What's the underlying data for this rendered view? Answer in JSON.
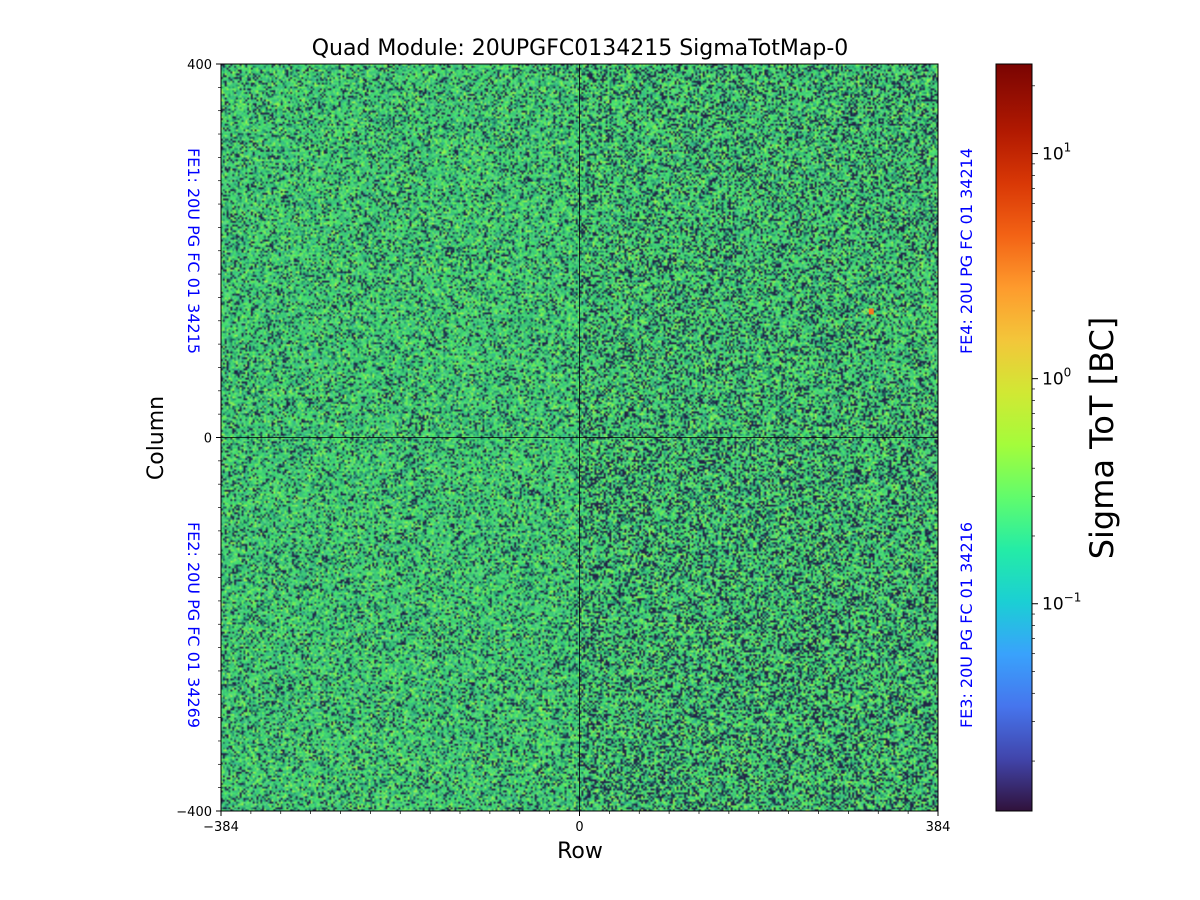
{
  "chart_data": {
    "type": "heatmap",
    "title": "Quad Module: 20UPGFC0134215 SigmaTotMap-0",
    "xlabel": "Row",
    "ylabel": "Column",
    "xlim": [
      -384,
      384
    ],
    "ylim": [
      -400,
      400
    ],
    "xticks": [
      {
        "value": -384,
        "label": "−384"
      },
      {
        "value": 0,
        "label": "0"
      },
      {
        "value": 384,
        "label": "384"
      }
    ],
    "yticks": [
      {
        "value": 400,
        "label": "400"
      },
      {
        "value": 0,
        "label": "0"
      },
      {
        "value": -400,
        "label": "−400"
      }
    ],
    "divider_lines": {
      "x": 0,
      "y": 0
    },
    "frontends": [
      {
        "label": "FE1: 20U PG FC 01 34215",
        "quadrant": "top-left"
      },
      {
        "label": "FE2: 20U PG FC 01 34269",
        "quadrant": "bottom-left"
      },
      {
        "label": "FE3: 20U PG FC 01 34216",
        "quadrant": "bottom-right"
      },
      {
        "label": "FE4: 20U PG FC 01 34214",
        "quadrant": "top-right"
      }
    ],
    "frontend_label_color": "#0000ff",
    "colorbar": {
      "label": "Sigma ToT [BC]",
      "scale": "log",
      "min": 0.012,
      "max": 25,
      "colormap": "turbo",
      "ticks": [
        {
          "value": 0.1,
          "base": "10",
          "exponent": "−1"
        },
        {
          "value": 1,
          "base": "10",
          "exponent": "0"
        },
        {
          "value": 10,
          "base": "10",
          "exponent": "1"
        }
      ]
    },
    "value_distribution": {
      "typical_range": [
        0.05,
        0.6
      ],
      "median": 0.28,
      "notes": "Noise map; most pixels green (~0.2-0.5 BC), scattered dark pixels (~0.02 BC). Bottom-right and top-right quadrants slightly darker."
    },
    "hot_spots": [
      {
        "row": 312,
        "column": 135,
        "value": 3.5
      }
    ]
  }
}
